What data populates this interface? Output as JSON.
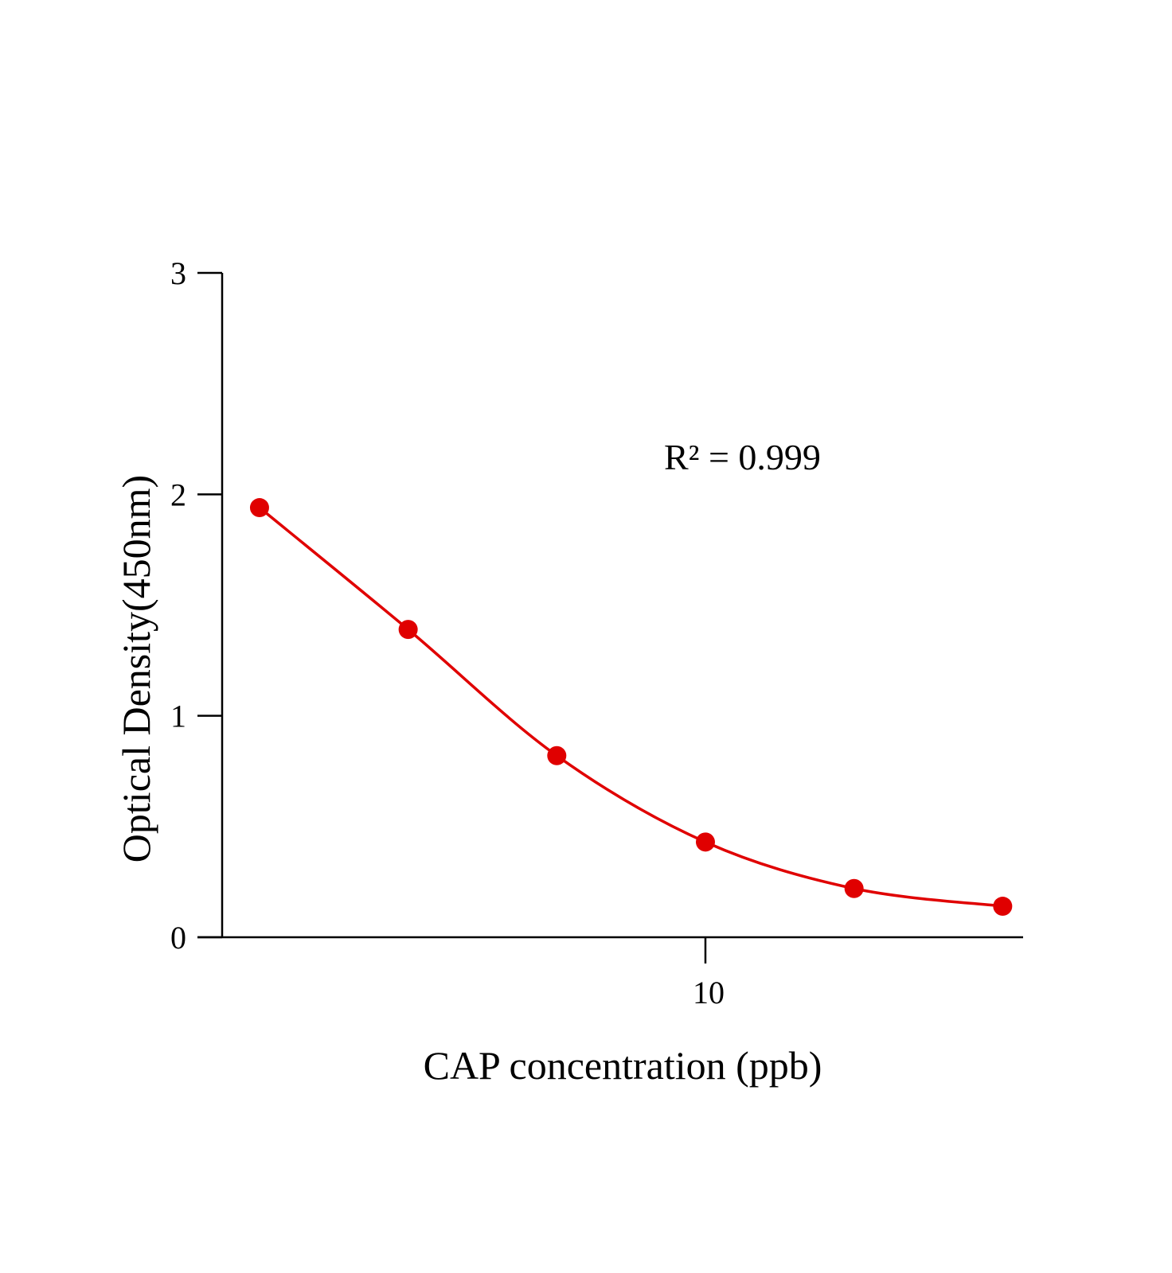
{
  "chart_data": {
    "type": "line",
    "title": "",
    "xlabel": "CAP concentration (ppb)",
    "ylabel": "Optical Density(450nm)",
    "x_scale": "log",
    "xlim": [
      1.05,
      44
    ],
    "ylim": [
      0,
      3
    ],
    "x_ticks": [
      {
        "value": 10,
        "label": "10"
      }
    ],
    "y_ticks": [
      {
        "value": 0,
        "label": "0"
      },
      {
        "value": 1,
        "label": "1"
      },
      {
        "value": 2,
        "label": "2"
      },
      {
        "value": 3,
        "label": "3"
      }
    ],
    "grid": false,
    "series": [
      {
        "color": "#e00000",
        "marker": "circle",
        "points": [
          {
            "x": 1.25,
            "y": 1.94
          },
          {
            "x": 2.5,
            "y": 1.39
          },
          {
            "x": 5,
            "y": 0.82
          },
          {
            "x": 10,
            "y": 0.43
          },
          {
            "x": 20,
            "y": 0.22
          },
          {
            "x": 40,
            "y": 0.14
          }
        ]
      }
    ],
    "annotations": [
      {
        "text": "R² = 0.999"
      }
    ]
  }
}
